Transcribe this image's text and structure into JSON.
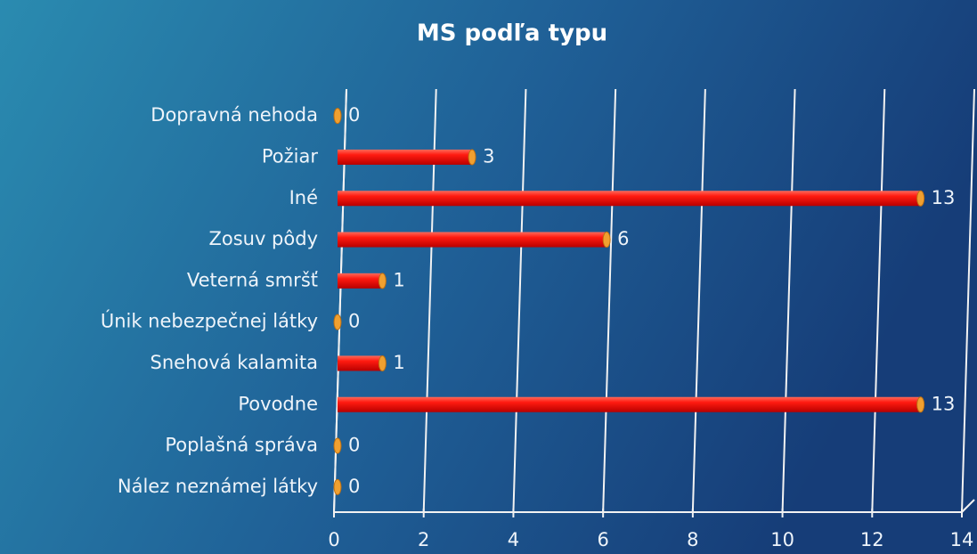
{
  "chart_data": {
    "type": "bar",
    "orientation": "horizontal",
    "title": "MS podľa typu",
    "categories": [
      "Dopravná nehoda",
      "Požiar",
      "Iné",
      "Zosuv pôdy",
      "Veterná smršť",
      "Únik nebezpečnej látky",
      "Snehová kalamita",
      "Povodne",
      "Poplašná správa",
      "Nález neznámej látky"
    ],
    "values": [
      0,
      3,
      13,
      6,
      1,
      0,
      1,
      13,
      0,
      0
    ],
    "color": "#ee1111",
    "xlim": [
      0,
      14
    ],
    "xticks": [
      0,
      2,
      4,
      6,
      8,
      10,
      12,
      14
    ],
    "grid": true
  }
}
